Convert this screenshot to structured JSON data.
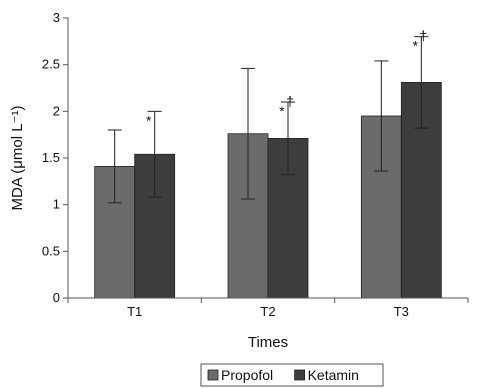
{
  "chart_data": {
    "type": "bar",
    "categories": [
      "T1",
      "T2",
      "T3"
    ],
    "series": [
      {
        "name": "Propofol",
        "values": [
          1.41,
          1.76,
          1.95
        ],
        "errors": [
          0.39,
          0.7,
          0.59
        ],
        "color": "#6b6b6b"
      },
      {
        "name": "Ketamin",
        "values": [
          1.54,
          1.71,
          2.31
        ],
        "errors": [
          0.46,
          0.39,
          0.49
        ],
        "color": "#3d3d3d"
      }
    ],
    "xlabel": "Times",
    "ylabel": "MDA (μmol L⁻¹)",
    "ylim": [
      0,
      3
    ],
    "yticks": [
      "0",
      "0.5",
      "1",
      "1.5",
      "2",
      "2.5",
      "3"
    ],
    "annotations": [
      {
        "category": "T1",
        "series": "Ketamin",
        "text": "*"
      },
      {
        "category": "T2",
        "series": "Ketamin",
        "text": "* †"
      },
      {
        "category": "T3",
        "series": "Ketamin",
        "text": "* †"
      }
    ],
    "legend_position": "bottom"
  }
}
